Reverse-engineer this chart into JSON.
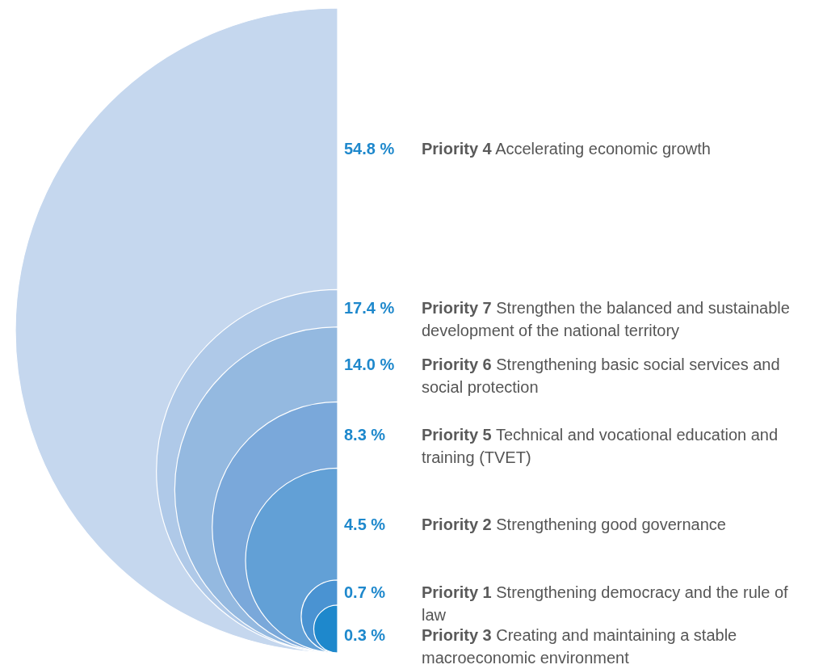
{
  "chart_data": {
    "type": "other",
    "categories": [
      "Priority 4",
      "Priority 7",
      "Priority 6",
      "Priority 5",
      "Priority 2",
      "Priority 1",
      "Priority 3"
    ],
    "values": [
      54.8,
      17.4,
      14.0,
      8.3,
      4.5,
      0.7,
      0.3
    ],
    "value_labels": [
      "54.8 %",
      "17.4 %",
      "14.0 %",
      "8.3 %",
      "4.5 %",
      "0.7 %",
      "0.3 %"
    ],
    "colors": [
      "#c5d7ee",
      "#afc9e8",
      "#94b9e0",
      "#7aa8da",
      "#62a0d6",
      "#4a93d2",
      "#1e88cc"
    ],
    "annotations": [
      "Accelerating economic growth",
      "Strengthen the balanced and sustainable development of the national territory",
      "Strengthening basic social services and social protection",
      "Technical and vocational education and training (TVET)",
      "Strengthening good governance",
      "Strengthening democracy and the rule of law",
      "Creating and maintaining a stable macroeconomic environment"
    ]
  }
}
